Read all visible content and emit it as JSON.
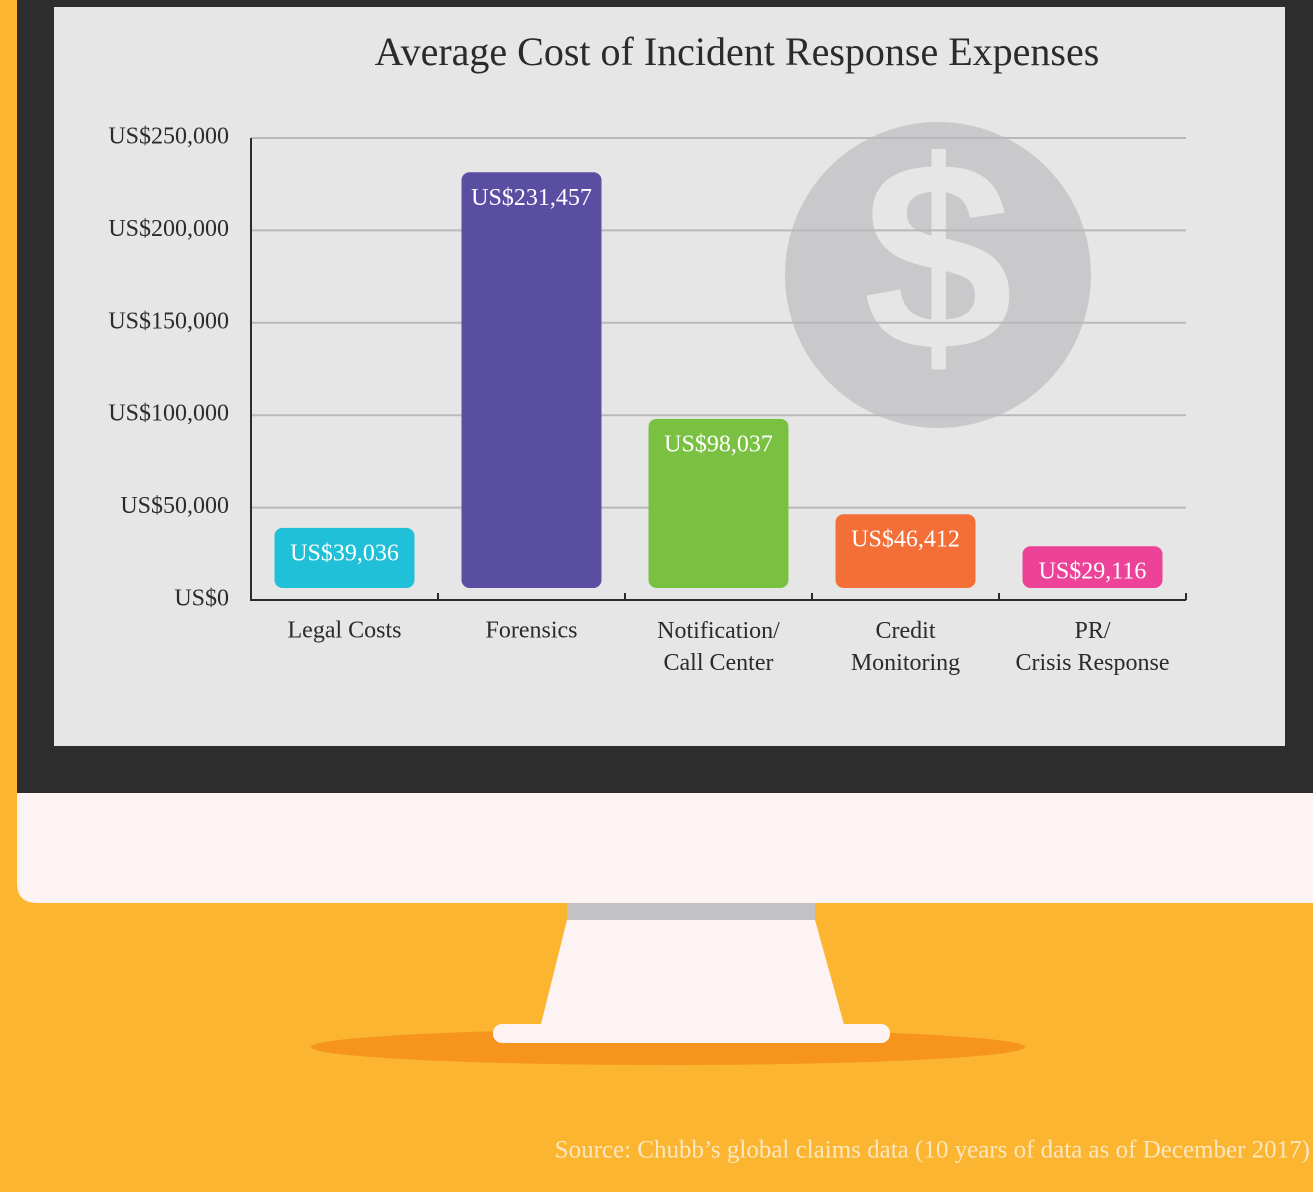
{
  "chart_data": {
    "type": "bar",
    "title": "Average Cost of Incident Response Expenses",
    "categories": [
      "Legal Costs",
      "Forensics",
      "Notification/\nCall Center",
      "Credit\nMonitoring",
      "PR/\nCrisis Response"
    ],
    "values": [
      39036,
      231457,
      98037,
      46412,
      29116
    ],
    "value_labels": [
      "US$39,036",
      "US$231,457",
      "US$98,037",
      "US$46,412",
      "US$29,116"
    ],
    "colors": [
      "#20c1d8",
      "#594ea2",
      "#7ac142",
      "#f36f37",
      "#ec4399"
    ],
    "ylim": [
      0,
      250000
    ],
    "yticks": [
      {
        "value": 0,
        "label": "US$0"
      },
      {
        "value": 50000,
        "label": "US$50,000"
      },
      {
        "value": 100000,
        "label": "US$100,000"
      },
      {
        "value": 150000,
        "label": "US$150,000"
      },
      {
        "value": 200000,
        "label": "US$200,000"
      },
      {
        "value": 250000,
        "label": "US$250,000"
      }
    ],
    "grid": true,
    "source": "Source: Chubb’s global claims data  (10 years of data as of December 2017)"
  }
}
